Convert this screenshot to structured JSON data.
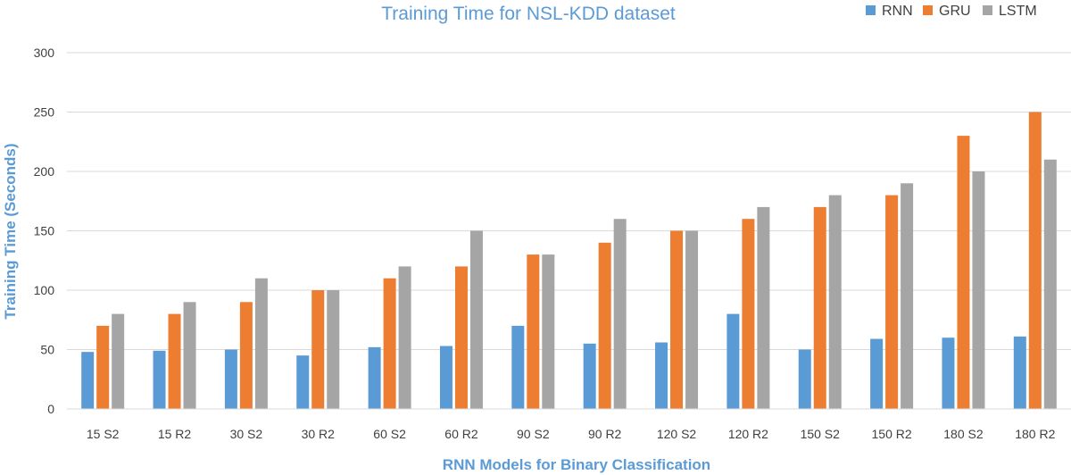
{
  "chart_data": {
    "type": "bar",
    "title": "Training Time for NSL-KDD dataset",
    "xlabel": "RNN Models for Binary Classification",
    "ylabel": "Training Time (Seconds)",
    "ylim": [
      0,
      300
    ],
    "yticks": [
      0,
      50,
      100,
      150,
      200,
      250,
      300
    ],
    "grid": true,
    "legend_position": "top-right",
    "categories": [
      "15 S2",
      "15 R2",
      "30 S2",
      "30 R2",
      "60 S2",
      "60 R2",
      "90 S2",
      "90 R2",
      "120 S2",
      "120 R2",
      "150 S2",
      "150 R2",
      "180 S2",
      "180 R2"
    ],
    "series": [
      {
        "name": "RNN",
        "color": "#5B9BD5",
        "values": [
          48,
          49,
          50,
          45,
          52,
          53,
          70,
          55,
          56,
          80,
          50,
          59,
          60,
          61
        ]
      },
      {
        "name": "GRU",
        "color": "#ED7D31",
        "values": [
          70,
          80,
          90,
          100,
          110,
          120,
          130,
          140,
          150,
          160,
          170,
          180,
          230,
          250
        ]
      },
      {
        "name": "LSTM",
        "color": "#A5A5A5",
        "values": [
          80,
          90,
          110,
          100,
          120,
          150,
          130,
          160,
          150,
          170,
          180,
          190,
          200,
          210
        ]
      }
    ],
    "title_color": "#5B9BD5",
    "axis_title_color": "#5B9BD5"
  }
}
